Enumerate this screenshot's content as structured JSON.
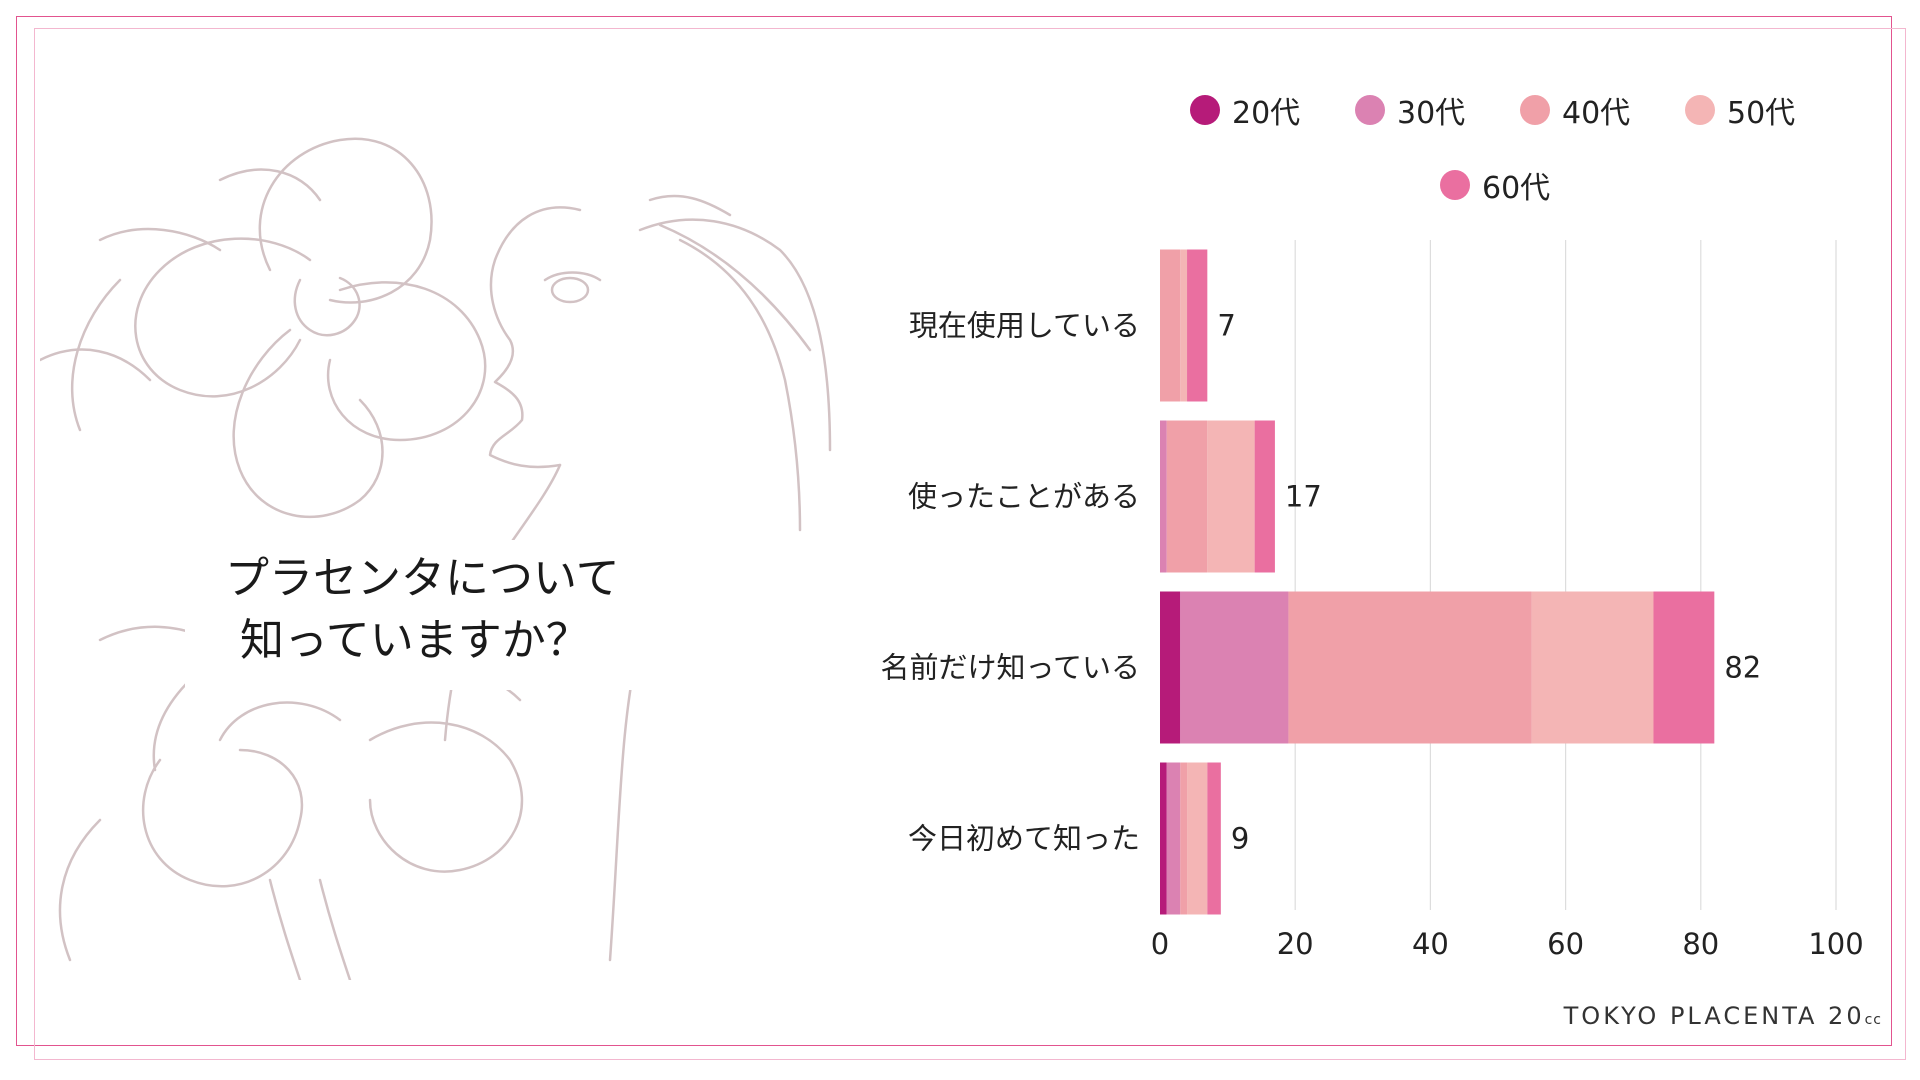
{
  "question": {
    "line1": "プラセンタについて",
    "line2": "知っていますか？"
  },
  "brand": {
    "name": "TOKYO PLACENTA 20",
    "suffix": "cc"
  },
  "colors": {
    "frame_outer": "#e2548f",
    "frame_inner": "#f3b7cf",
    "illustration_line": "#d2c2c4",
    "gridline": "#dddddd"
  },
  "chart_data": {
    "type": "bar",
    "orientation": "horizontal",
    "stacked": true,
    "categories": [
      "現在使用している",
      "使ったことがある",
      "名前だけ知っている",
      "今日初めて知った"
    ],
    "series": [
      {
        "name": "20代",
        "color": "#b61b79",
        "values": [
          0,
          0,
          3,
          1
        ]
      },
      {
        "name": "30代",
        "color": "#db82b2",
        "values": [
          0,
          1,
          16,
          2
        ]
      },
      {
        "name": "40代",
        "color": "#f0a0a8",
        "values": [
          3,
          6,
          36,
          1
        ]
      },
      {
        "name": "50代",
        "color": "#f4b5b5",
        "values": [
          1,
          7,
          18,
          3
        ]
      },
      {
        "name": "60代",
        "color": "#ea6fa0",
        "values": [
          3,
          3,
          9,
          2
        ]
      }
    ],
    "totals": [
      7,
      17,
      82,
      9
    ],
    "xlim": [
      0,
      100
    ],
    "xticks": [
      0,
      20,
      40,
      60,
      80,
      100
    ],
    "grid": true,
    "legend_position": "top"
  }
}
